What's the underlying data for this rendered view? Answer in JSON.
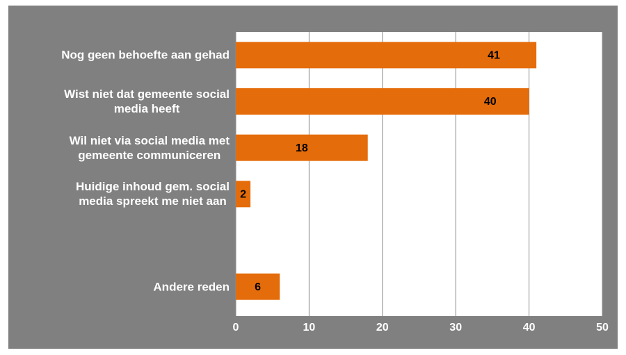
{
  "chart_data": {
    "type": "bar",
    "orientation": "horizontal",
    "categories": [
      "Nog geen behoefte aan gehad",
      "Wist niet dat gemeente social\nmedia heeft",
      "Wil niet via social media met\ngemeente communiceren",
      "Huidige inhoud gem. social\nmedia spreekt me niet aan",
      null,
      "Andere reden"
    ],
    "values": [
      41,
      40,
      18,
      2,
      null,
      6
    ],
    "color": "#e46c0a",
    "xlim": [
      0,
      50
    ],
    "xticks": [
      0,
      10,
      20,
      30,
      40,
      50
    ],
    "grid": true
  }
}
